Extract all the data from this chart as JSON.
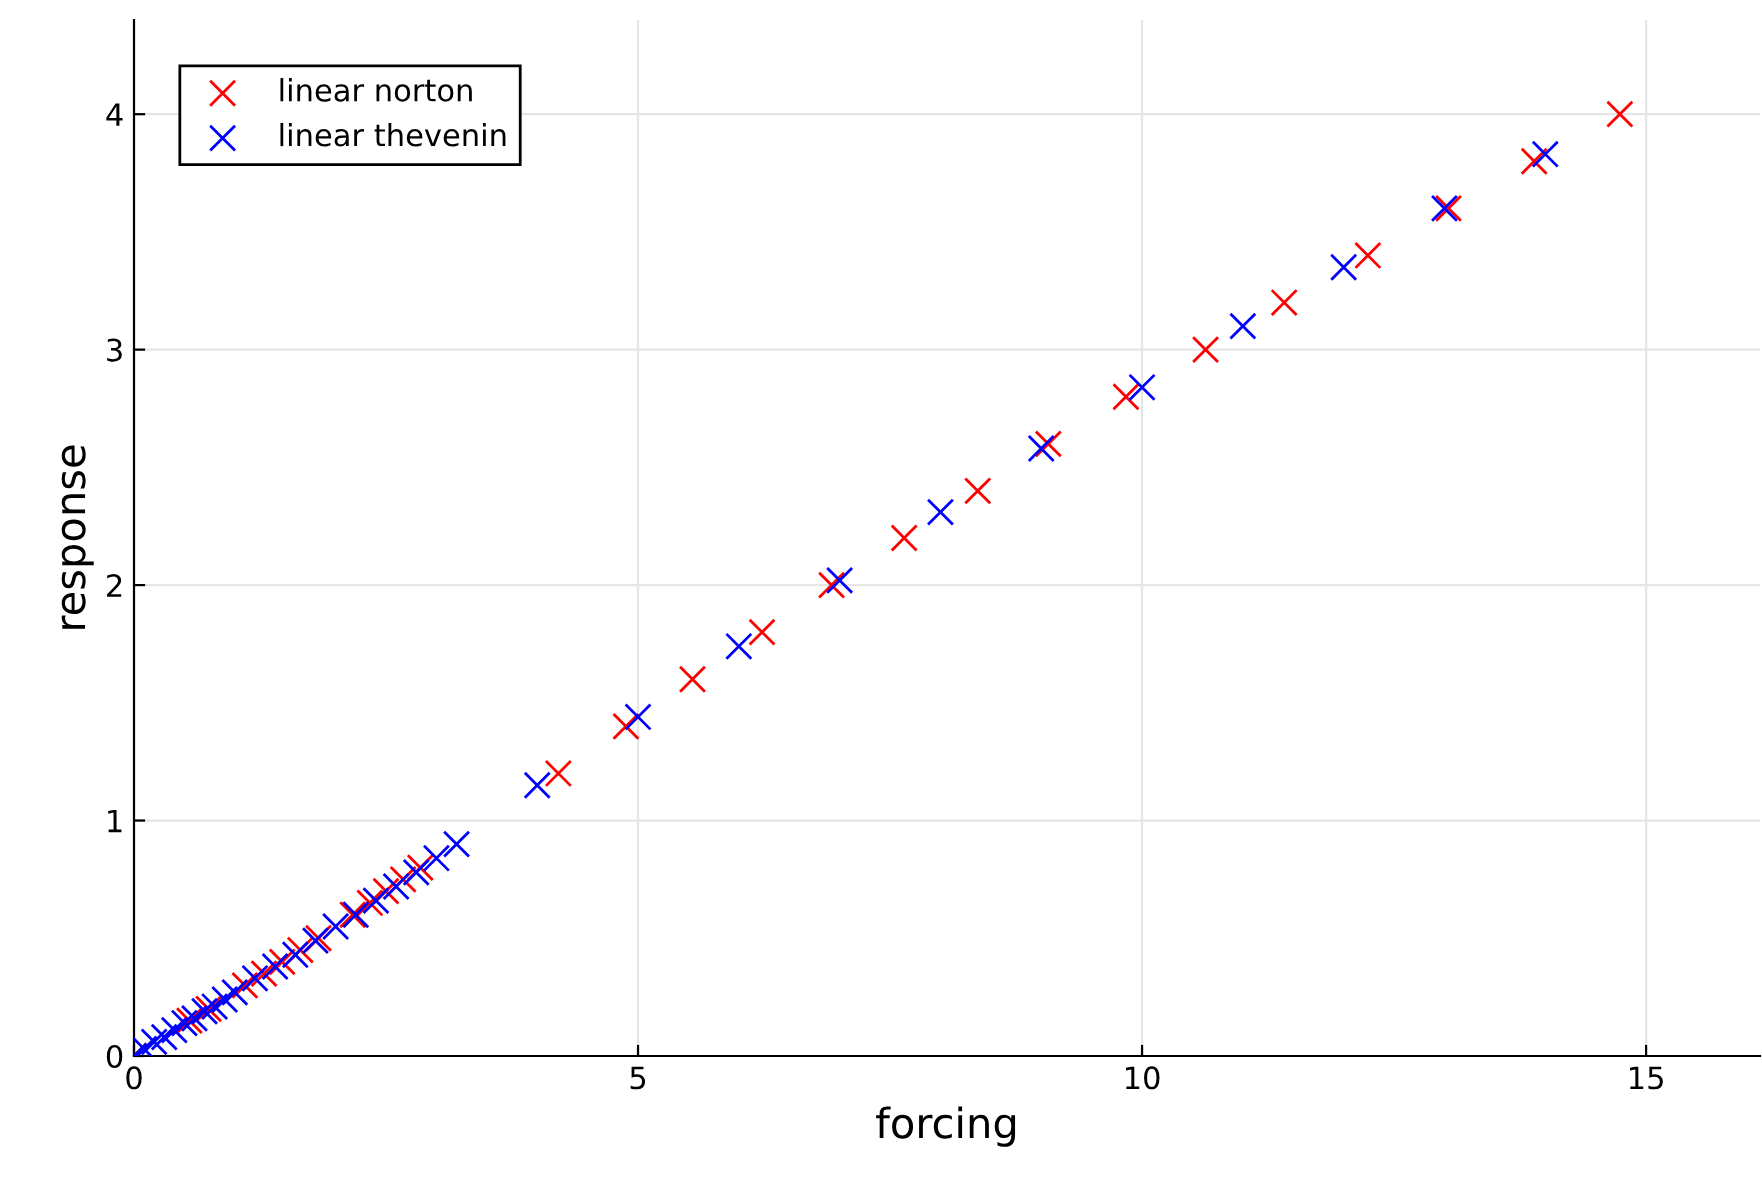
{
  "chart_data": {
    "type": "scatter",
    "xlabel": "forcing",
    "ylabel": "response",
    "xlim": [
      0,
      16.13
    ],
    "ylim": [
      0,
      4.4
    ],
    "xticks": [
      0,
      5,
      10,
      15
    ],
    "yticks": [
      0,
      1,
      2,
      3,
      4
    ],
    "grid": true,
    "legend": "top left",
    "marker": "cross",
    "series": [
      {
        "name": "linear norton",
        "color": "#ff0000",
        "x": [
          0,
          0.19,
          0.37,
          0.55,
          0.74,
          0.92,
          1.1,
          1.29,
          1.47,
          1.65,
          1.83,
          2.0,
          2.17,
          2.34,
          2.5,
          2.67,
          2.84,
          4.21,
          4.88,
          5.54,
          6.23,
          6.92,
          7.64,
          8.37,
          9.07,
          9.84,
          10.63,
          11.41,
          12.24,
          13.04,
          13.89,
          14.74
        ],
        "values": [
          0,
          null,
          null,
          0.15,
          0.2,
          null,
          0.3,
          0.35,
          0.4,
          0.45,
          0.5,
          null,
          0.6,
          0.65,
          0.7,
          0.75,
          0.8,
          1.2,
          1.4,
          1.6,
          1.8,
          2.0,
          2.2,
          2.4,
          2.6,
          2.8,
          3.0,
          3.2,
          3.4,
          3.6,
          3.8,
          4.0
        ]
      },
      {
        "name": "linear thevenin",
        "color": "#0000ff",
        "x": [
          0,
          0.1,
          0.2,
          0.3,
          0.4,
          0.5,
          0.6,
          0.7,
          0.8,
          0.9,
          1.0,
          1.2,
          1.4,
          1.6,
          1.8,
          2.0,
          2.2,
          2.4,
          2.6,
          2.8,
          3.0,
          3.2,
          4,
          5,
          6,
          7,
          8,
          9,
          10,
          11,
          12,
          13,
          14
        ],
        "values": [
          0,
          0.03,
          0.06,
          0.08,
          0.11,
          0.14,
          0.16,
          0.19,
          0.21,
          0.24,
          0.27,
          0.33,
          0.38,
          0.43,
          0.49,
          0.55,
          0.6,
          0.66,
          0.72,
          0.78,
          0.84,
          0.9,
          1.15,
          1.44,
          1.74,
          2.02,
          2.31,
          2.58,
          2.84,
          3.1,
          3.35,
          3.6,
          3.83
        ]
      }
    ]
  }
}
